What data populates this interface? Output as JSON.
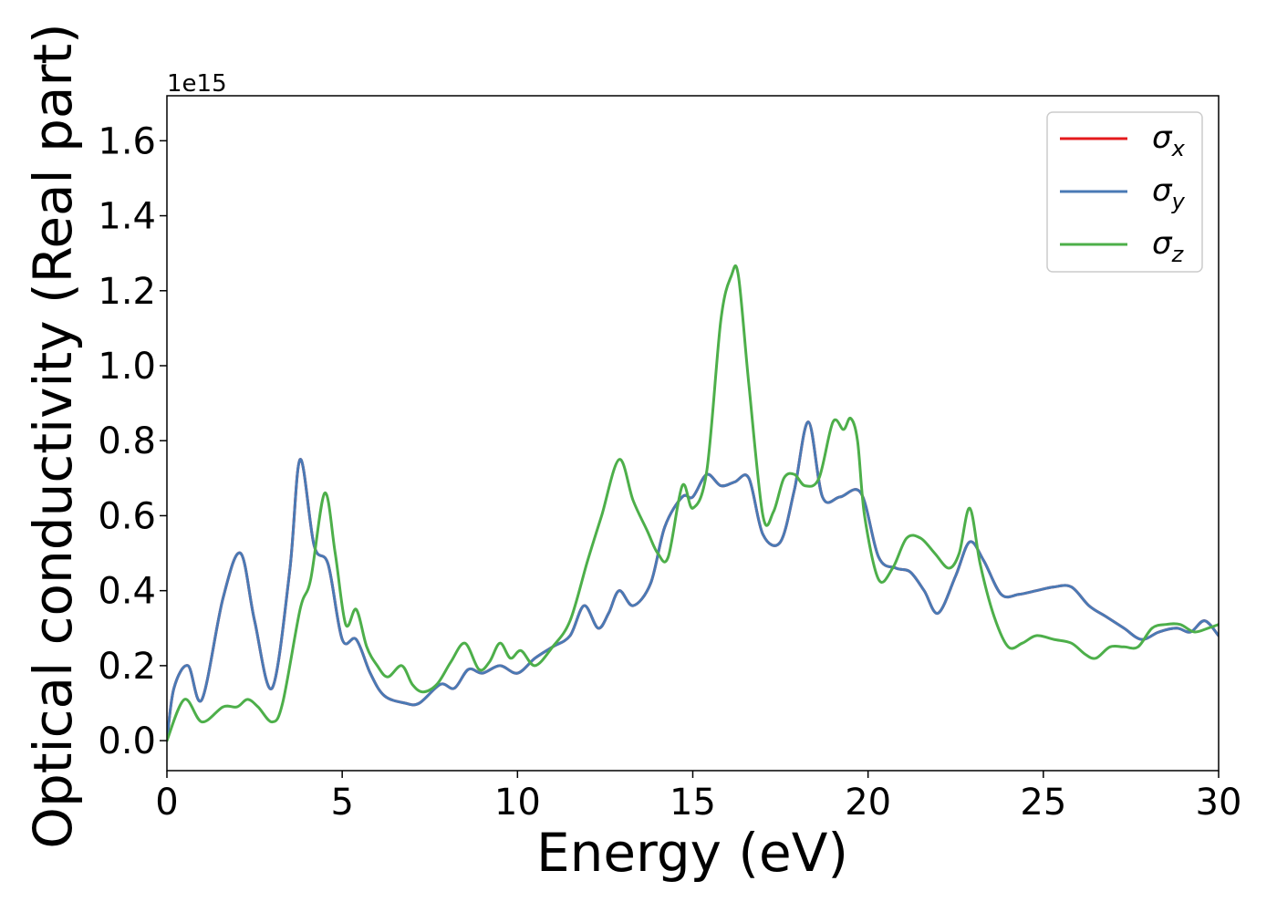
{
  "chart_data": {
    "type": "line",
    "title": "",
    "xlabel": "Energy (eV)",
    "ylabel": "Optical conductivity (Real part)",
    "y_offset_label": "1e15",
    "xlim": [
      0,
      30
    ],
    "ylim": [
      -0.08,
      1.72
    ],
    "x_ticks": [
      "0",
      "5",
      "10",
      "15",
      "20",
      "25",
      "30"
    ],
    "y_ticks": [
      "0.0",
      "0.2",
      "0.4",
      "0.6",
      "0.8",
      "1.0",
      "1.2",
      "1.4",
      "1.6"
    ],
    "grid": false,
    "legend_position": "top-right",
    "series": [
      {
        "name": "σx",
        "color": "#e41a1c",
        "x": [
          0,
          0.2,
          0.6,
          1.0,
          1.6,
          2.1,
          2.5,
          3.0,
          3.5,
          3.8,
          4.2,
          4.6,
          5.0,
          5.4,
          5.8,
          6.2,
          6.8,
          7.2,
          7.8,
          8.2,
          8.6,
          9.0,
          9.5,
          10.0,
          10.5,
          11.0,
          11.5,
          11.9,
          12.3,
          12.6,
          12.9,
          13.3,
          13.8,
          14.2,
          14.7,
          15.0,
          15.4,
          15.8,
          16.2,
          16.6,
          17.0,
          17.5,
          17.9,
          18.3,
          18.7,
          19.2,
          19.8,
          20.3,
          20.8,
          21.2,
          21.6,
          22.0,
          22.5,
          22.9,
          23.3,
          23.8,
          24.3,
          24.8,
          25.3,
          25.8,
          26.3,
          26.8,
          27.3,
          27.8,
          28.3,
          28.8,
          29.2,
          29.6,
          30.0
        ],
        "values": [
          0,
          0.14,
          0.2,
          0.11,
          0.38,
          0.5,
          0.32,
          0.14,
          0.45,
          0.75,
          0.52,
          0.47,
          0.27,
          0.27,
          0.18,
          0.12,
          0.1,
          0.1,
          0.15,
          0.14,
          0.19,
          0.18,
          0.2,
          0.18,
          0.22,
          0.25,
          0.28,
          0.36,
          0.3,
          0.34,
          0.4,
          0.36,
          0.42,
          0.57,
          0.65,
          0.65,
          0.71,
          0.68,
          0.69,
          0.7,
          0.55,
          0.53,
          0.67,
          0.85,
          0.65,
          0.65,
          0.66,
          0.49,
          0.46,
          0.45,
          0.4,
          0.34,
          0.44,
          0.53,
          0.48,
          0.39,
          0.39,
          0.4,
          0.41,
          0.41,
          0.36,
          0.33,
          0.3,
          0.27,
          0.29,
          0.3,
          0.29,
          0.32,
          0.28
        ]
      },
      {
        "name": "σy",
        "color": "#4a7ab5",
        "x": [
          0,
          0.2,
          0.6,
          1.0,
          1.6,
          2.1,
          2.5,
          3.0,
          3.5,
          3.8,
          4.2,
          4.6,
          5.0,
          5.4,
          5.8,
          6.2,
          6.8,
          7.2,
          7.8,
          8.2,
          8.6,
          9.0,
          9.5,
          10.0,
          10.5,
          11.0,
          11.5,
          11.9,
          12.3,
          12.6,
          12.9,
          13.3,
          13.8,
          14.2,
          14.7,
          15.0,
          15.4,
          15.8,
          16.2,
          16.6,
          17.0,
          17.5,
          17.9,
          18.3,
          18.7,
          19.2,
          19.8,
          20.3,
          20.8,
          21.2,
          21.6,
          22.0,
          22.5,
          22.9,
          23.3,
          23.8,
          24.3,
          24.8,
          25.3,
          25.8,
          26.3,
          26.8,
          27.3,
          27.8,
          28.3,
          28.8,
          29.2,
          29.6,
          30.0
        ],
        "values": [
          0,
          0.14,
          0.2,
          0.11,
          0.38,
          0.5,
          0.32,
          0.14,
          0.45,
          0.75,
          0.52,
          0.47,
          0.27,
          0.27,
          0.18,
          0.12,
          0.1,
          0.1,
          0.15,
          0.14,
          0.19,
          0.18,
          0.2,
          0.18,
          0.22,
          0.25,
          0.28,
          0.36,
          0.3,
          0.34,
          0.4,
          0.36,
          0.42,
          0.57,
          0.65,
          0.65,
          0.71,
          0.68,
          0.69,
          0.7,
          0.55,
          0.53,
          0.67,
          0.85,
          0.65,
          0.65,
          0.66,
          0.49,
          0.46,
          0.45,
          0.4,
          0.34,
          0.44,
          0.53,
          0.48,
          0.39,
          0.39,
          0.4,
          0.41,
          0.41,
          0.36,
          0.33,
          0.3,
          0.27,
          0.29,
          0.3,
          0.29,
          0.32,
          0.28
        ]
      },
      {
        "name": "σz",
        "color": "#4daf4a",
        "x": [
          0,
          0.5,
          1.0,
          1.6,
          2.0,
          2.3,
          2.6,
          3.0,
          3.3,
          3.8,
          4.1,
          4.5,
          4.8,
          5.1,
          5.4,
          5.7,
          6.0,
          6.3,
          6.7,
          7.0,
          7.3,
          7.7,
          8.1,
          8.5,
          8.9,
          9.2,
          9.5,
          9.8,
          10.1,
          10.5,
          11.0,
          11.5,
          12.0,
          12.4,
          12.9,
          13.3,
          13.7,
          14.0,
          14.3,
          14.7,
          15.0,
          15.4,
          15.8,
          16.1,
          16.3,
          16.6,
          17.0,
          17.3,
          17.6,
          17.9,
          18.2,
          18.6,
          19.0,
          19.3,
          19.5,
          19.7,
          19.9,
          20.3,
          20.7,
          21.1,
          21.5,
          21.9,
          22.3,
          22.6,
          22.9,
          23.2,
          23.6,
          24.0,
          24.4,
          24.8,
          25.3,
          25.8,
          26.2,
          26.5,
          26.9,
          27.3,
          27.7,
          28.1,
          28.5,
          28.9,
          29.3,
          29.7,
          30.0
        ],
        "values": [
          0,
          0.11,
          0.05,
          0.09,
          0.09,
          0.11,
          0.09,
          0.05,
          0.1,
          0.35,
          0.43,
          0.66,
          0.5,
          0.31,
          0.35,
          0.25,
          0.2,
          0.17,
          0.2,
          0.15,
          0.13,
          0.15,
          0.21,
          0.26,
          0.19,
          0.21,
          0.26,
          0.22,
          0.24,
          0.2,
          0.25,
          0.32,
          0.48,
          0.6,
          0.75,
          0.64,
          0.56,
          0.5,
          0.49,
          0.68,
          0.62,
          0.72,
          1.12,
          1.24,
          1.24,
          0.95,
          0.6,
          0.61,
          0.7,
          0.71,
          0.68,
          0.7,
          0.85,
          0.83,
          0.86,
          0.8,
          0.6,
          0.43,
          0.46,
          0.54,
          0.54,
          0.5,
          0.46,
          0.5,
          0.62,
          0.47,
          0.33,
          0.25,
          0.26,
          0.28,
          0.27,
          0.26,
          0.23,
          0.22,
          0.25,
          0.25,
          0.25,
          0.3,
          0.31,
          0.31,
          0.29,
          0.3,
          0.31
        ]
      }
    ]
  }
}
